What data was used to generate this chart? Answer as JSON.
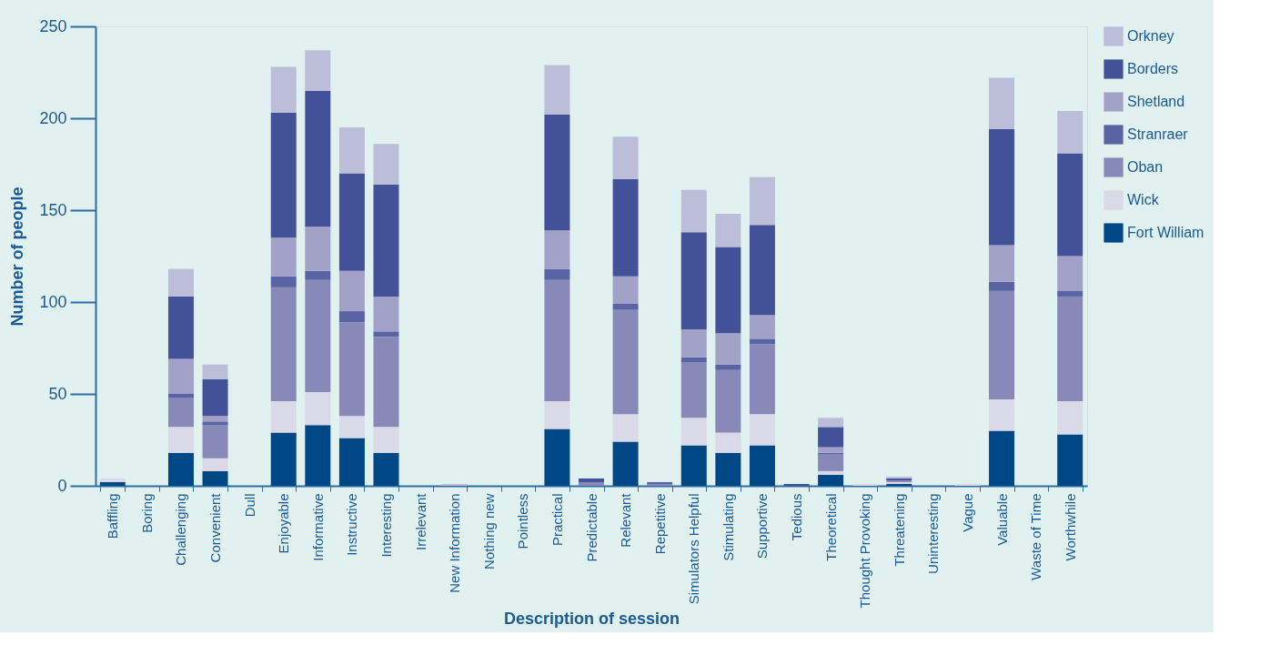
{
  "chart_data": {
    "type": "bar",
    "stacked": true,
    "xlabel": "Description of session",
    "ylabel": "Number of people",
    "categories": [
      "Baffling",
      "Boring",
      "Challenging",
      "Convenient",
      "Dull",
      "Enjoyable",
      "Informative",
      "Instructive",
      "Interesting",
      "Irrelevant",
      "New Information",
      "Nothing new",
      "Pointless",
      "Practical",
      "Predictable",
      "Relevant",
      "Repetitive",
      "Simulators Helpful",
      "Stimulating",
      "Supportive",
      "Tedious",
      "Theoretical",
      "Thought Provoking",
      "Threatening",
      "Uninteresting",
      "Vague",
      "Valuable",
      "Waste of Time",
      "Worthwhile"
    ],
    "series": [
      {
        "name": "Fort William",
        "color": "#004785",
        "values": [
          2,
          0,
          18,
          8,
          0,
          29,
          33,
          26,
          18,
          0,
          0,
          0,
          0,
          31,
          0,
          24,
          0,
          22,
          18,
          22,
          0,
          6,
          0,
          1,
          0,
          0,
          30,
          0,
          28
        ]
      },
      {
        "name": "Wick",
        "color": "#d9d9e8",
        "values": [
          2,
          0,
          14,
          7,
          0,
          17,
          18,
          12,
          14,
          0,
          0,
          0,
          0,
          15,
          0,
          15,
          0,
          15,
          11,
          17,
          0,
          2,
          1,
          1,
          0,
          1,
          17,
          0,
          18
        ]
      },
      {
        "name": "Oban",
        "color": "#8888b9",
        "values": [
          0,
          0,
          16,
          18,
          0,
          62,
          61,
          51,
          49,
          0,
          0,
          0,
          0,
          66,
          2,
          57,
          1,
          30,
          34,
          38,
          0,
          9,
          0,
          1,
          0,
          0,
          59,
          0,
          57
        ]
      },
      {
        "name": "Stranraer",
        "color": "#5a63a3",
        "values": [
          0,
          0,
          2,
          2,
          0,
          6,
          5,
          6,
          3,
          0,
          0,
          0,
          0,
          6,
          0,
          3,
          1,
          3,
          3,
          3,
          0,
          1,
          0,
          0,
          0,
          0,
          5,
          0,
          3
        ]
      },
      {
        "name": "Shetland",
        "color": "#a2a2c9",
        "values": [
          0,
          0,
          19,
          3,
          0,
          21,
          24,
          22,
          19,
          0,
          0,
          0,
          0,
          21,
          0,
          15,
          0,
          15,
          17,
          13,
          0,
          3,
          0,
          0,
          0,
          0,
          20,
          0,
          19
        ]
      },
      {
        "name": "Borders",
        "color": "#425198",
        "values": [
          0,
          0,
          34,
          20,
          0,
          68,
          74,
          53,
          61,
          0,
          0,
          0,
          0,
          63,
          2,
          53,
          0,
          53,
          47,
          49,
          1,
          11,
          0,
          1,
          0,
          0,
          63,
          0,
          56
        ]
      },
      {
        "name": "Orkney",
        "color": "#bcbdd8",
        "values": [
          0,
          0,
          15,
          8,
          0,
          25,
          22,
          25,
          22,
          0,
          1,
          0,
          0,
          27,
          0,
          23,
          0,
          23,
          18,
          26,
          0,
          5,
          0,
          1,
          0,
          0,
          28,
          0,
          23
        ]
      }
    ],
    "ylim": [
      0,
      250
    ],
    "yticks": [
      0,
      50,
      100,
      150,
      200,
      250
    ],
    "grid": false,
    "legend": "right"
  }
}
